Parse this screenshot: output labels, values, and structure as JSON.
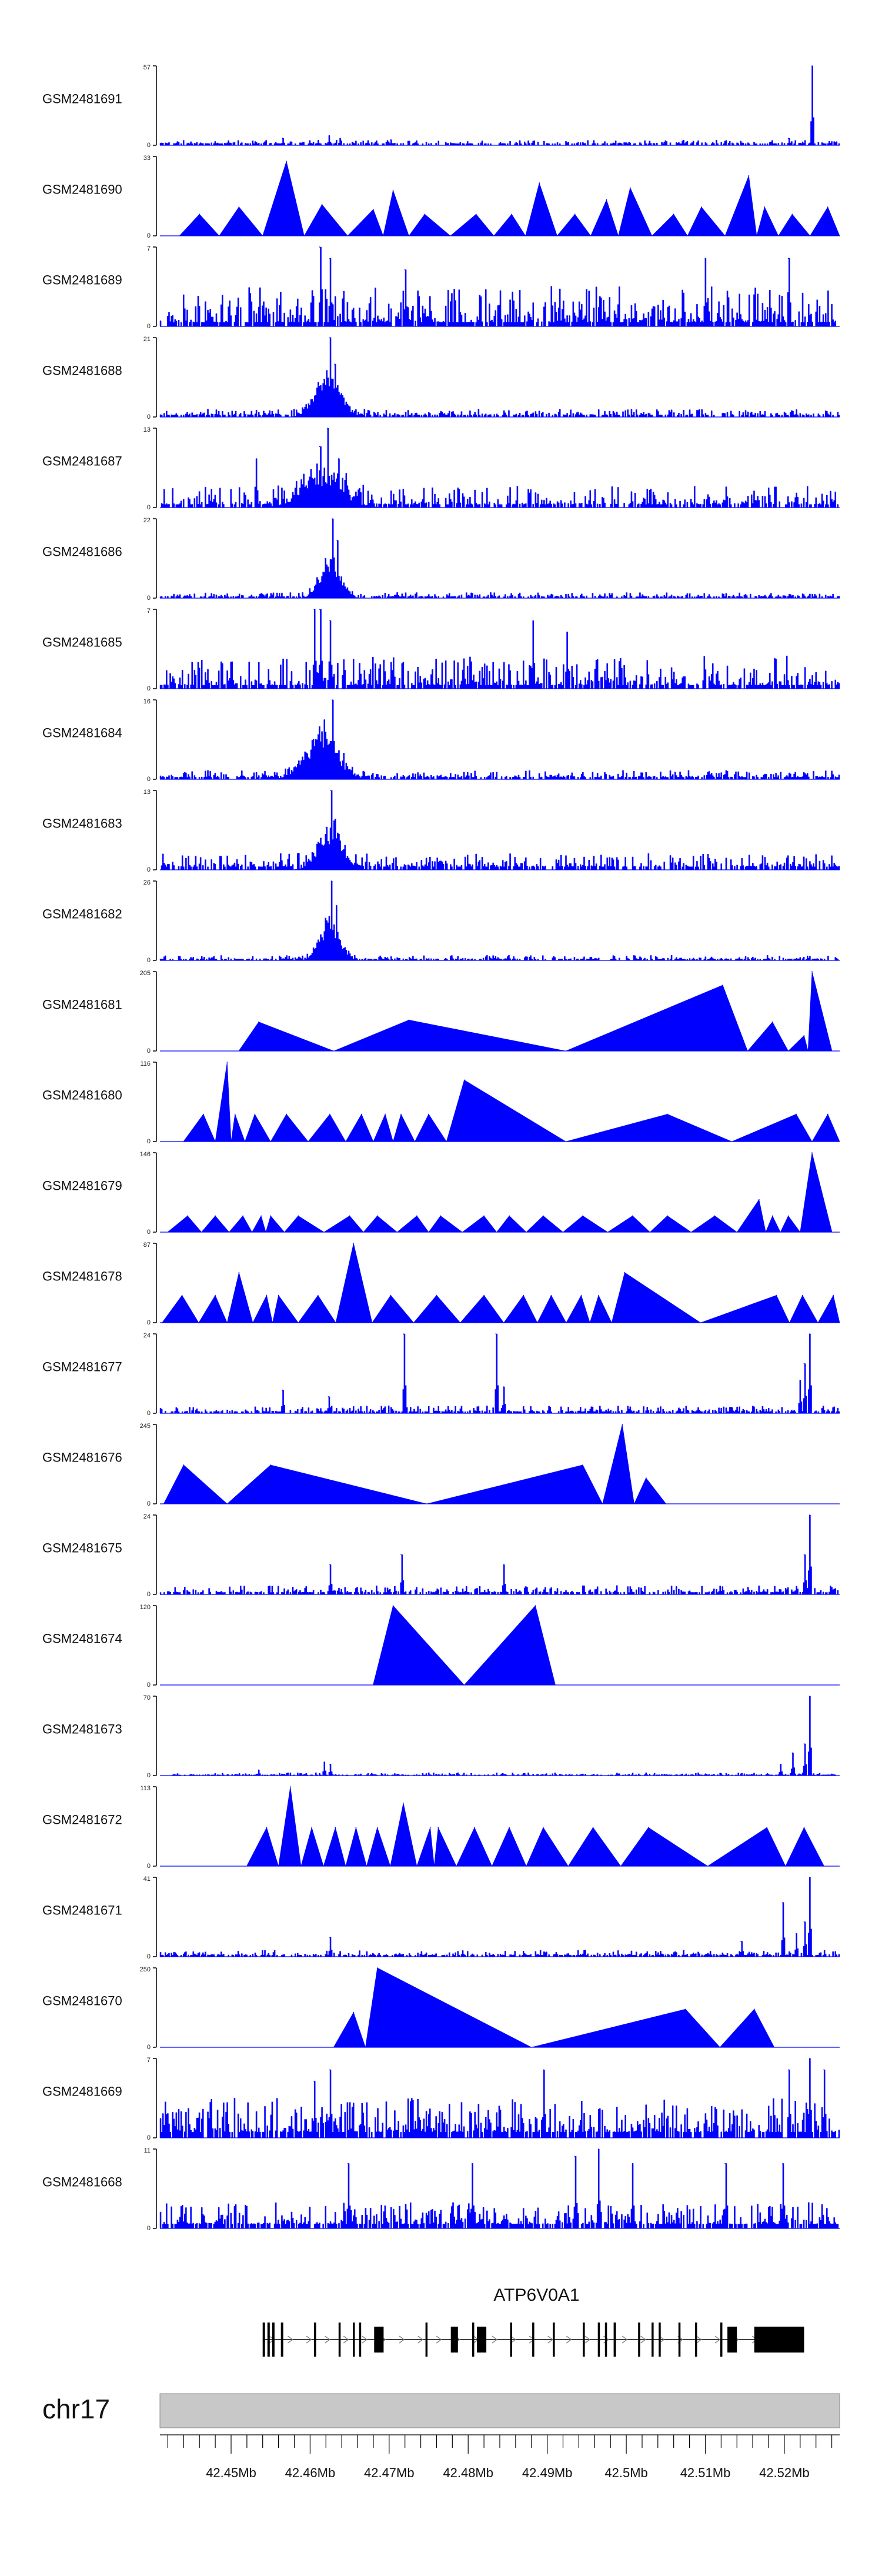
{
  "chart_data": {
    "type": "area",
    "title": "",
    "chromosome": "chr17",
    "region_mb": [
      42.441,
      42.527
    ],
    "fill_color": "#0000ff",
    "ideogram_color": "#c8c8c8",
    "x_ticks": [
      {
        "value": 42.45,
        "label": "42.45Mb"
      },
      {
        "value": 42.46,
        "label": "42.46Mb"
      },
      {
        "value": 42.47,
        "label": "42.47Mb"
      },
      {
        "value": 42.48,
        "label": "42.48Mb"
      },
      {
        "value": 42.49,
        "label": "42.49Mb"
      },
      {
        "value": 42.5,
        "label": "42.5Mb"
      },
      {
        "value": 42.51,
        "label": "42.51Mb"
      },
      {
        "value": 42.52,
        "label": "42.52Mb"
      }
    ],
    "gene": {
      "name": "ATP6V0A1",
      "start_mb": 42.454,
      "end_mb": 42.5225,
      "strand": "+",
      "exons": [
        [
          42.454,
          42.4543
        ],
        [
          42.4546,
          42.4549
        ],
        [
          42.4552,
          42.4555
        ],
        [
          42.4563,
          42.4566
        ],
        [
          42.4605,
          42.4607
        ],
        [
          42.4636,
          42.4638
        ],
        [
          42.4654,
          42.4656
        ],
        [
          42.4662,
          42.4664
        ],
        [
          42.4681,
          42.4693
        ],
        [
          42.4746,
          42.4748
        ],
        [
          42.4778,
          42.4787
        ],
        [
          42.4805,
          42.4807
        ],
        [
          42.4811,
          42.4823
        ],
        [
          42.4853,
          42.4855
        ],
        [
          42.4881,
          42.4883
        ],
        [
          42.4907,
          42.4909
        ],
        [
          42.4945,
          42.4947
        ],
        [
          42.4964,
          42.4966
        ],
        [
          42.4973,
          42.4975
        ],
        [
          42.4984,
          42.4987
        ],
        [
          42.5015,
          42.5017
        ],
        [
          42.5032,
          42.5034
        ],
        [
          42.5041,
          42.5043
        ],
        [
          42.5066,
          42.5068
        ],
        [
          42.5087,
          42.5089
        ],
        [
          42.5119,
          42.5121
        ],
        [
          42.5128,
          42.514
        ],
        [
          42.5162,
          42.5225
        ]
      ]
    },
    "series": [
      {
        "name": "GSM2481691",
        "ymax": 57,
        "style": "signal",
        "baseline": 1.2,
        "noise": 2.5,
        "sparsity": 0.35,
        "seed": 11,
        "peaks": [
          [
            42.4624,
            7
          ],
          [
            42.4638,
            5
          ],
          [
            42.5235,
            57
          ],
          [
            42.5205,
            5
          ],
          [
            42.4565,
            5
          ],
          [
            42.4702,
            4
          ]
        ]
      },
      {
        "name": "GSM2481690",
        "ymax": 33,
        "style": "triangles",
        "seed": 12,
        "peaks": [
          [
            42.446,
            9
          ],
          [
            42.451,
            12
          ],
          [
            42.457,
            31
          ],
          [
            42.4615,
            13
          ],
          [
            42.468,
            11
          ],
          [
            42.4705,
            19
          ],
          [
            42.4745,
            9
          ],
          [
            42.481,
            9
          ],
          [
            42.4855,
            9
          ],
          [
            42.489,
            22
          ],
          [
            42.4935,
            9
          ],
          [
            42.4975,
            15
          ],
          [
            42.5005,
            20
          ],
          [
            42.506,
            9
          ],
          [
            42.5095,
            12
          ],
          [
            42.5155,
            25
          ],
          [
            42.5175,
            12
          ],
          [
            42.521,
            9
          ],
          [
            42.5255,
            12
          ]
        ]
      },
      {
        "name": "GSM2481689",
        "ymax": 7,
        "style": "signal",
        "baseline": 0.35,
        "noise": 3.2,
        "sparsity": 0.15,
        "seed": 13,
        "peaks": [
          [
            42.4612,
            7
          ],
          [
            42.4625,
            6
          ],
          [
            42.472,
            5
          ],
          [
            42.51,
            6
          ],
          [
            42.5205,
            6
          ]
        ]
      },
      {
        "name": "GSM2481688",
        "ymax": 21,
        "style": "signal",
        "baseline": 0.5,
        "noise": 1.6,
        "sparsity": 0.3,
        "seed": 14,
        "cluster": [
          42.4622,
          0.0015,
          12
        ],
        "peaks": [
          [
            42.4625,
            21
          ],
          [
            42.4631,
            14
          ],
          [
            42.4617,
            10
          ]
        ]
      },
      {
        "name": "GSM2481687",
        "ymax": 13,
        "style": "signal",
        "baseline": 0.5,
        "noise": 3.0,
        "sparsity": 0.3,
        "seed": 15,
        "cluster": [
          42.4615,
          0.0025,
          6
        ],
        "peaks": [
          [
            42.4622,
            13
          ],
          [
            42.4612,
            10
          ],
          [
            42.4636,
            8
          ],
          [
            42.4532,
            8
          ]
        ]
      },
      {
        "name": "GSM2481686",
        "ymax": 22,
        "style": "signal",
        "baseline": 0.4,
        "noise": 1.2,
        "sparsity": 0.35,
        "seed": 16,
        "cluster": [
          42.4625,
          0.0012,
          12
        ],
        "peaks": [
          [
            42.4628,
            22
          ],
          [
            42.4634,
            16
          ],
          [
            42.4619,
            11
          ]
        ]
      },
      {
        "name": "GSM2481685",
        "ymax": 7,
        "style": "signal",
        "baseline": 0.3,
        "noise": 2.6,
        "sparsity": 0.2,
        "seed": 17,
        "peaks": [
          [
            42.4605,
            7
          ],
          [
            42.4612,
            7
          ],
          [
            42.4625,
            6
          ],
          [
            42.4882,
            6
          ],
          [
            42.4925,
            5
          ]
        ]
      },
      {
        "name": "GSM2481684",
        "ymax": 16,
        "style": "signal",
        "baseline": 0.4,
        "noise": 1.4,
        "sparsity": 0.3,
        "seed": 18,
        "cluster": [
          42.4615,
          0.002,
          10
        ],
        "peaks": [
          [
            42.4628,
            16
          ],
          [
            42.4618,
            12
          ],
          [
            42.461,
            9
          ]
        ]
      },
      {
        "name": "GSM2481683",
        "ymax": 13,
        "style": "signal",
        "baseline": 0.5,
        "noise": 2.2,
        "sparsity": 0.3,
        "seed": 19,
        "cluster": [
          42.4625,
          0.0015,
          7
        ],
        "peaks": [
          [
            42.4626,
            13
          ],
          [
            42.4631,
            8
          ],
          [
            42.462,
            7
          ]
        ]
      },
      {
        "name": "GSM2481682",
        "ymax": 26,
        "style": "signal",
        "baseline": 0.4,
        "noise": 1.3,
        "sparsity": 0.35,
        "seed": 20,
        "cluster": [
          42.4625,
          0.0012,
          14
        ],
        "peaks": [
          [
            42.4627,
            26
          ],
          [
            42.4633,
            18
          ],
          [
            42.4621,
            13
          ]
        ]
      },
      {
        "name": "GSM2481681",
        "ymax": 205,
        "style": "triangles",
        "seed": 21,
        "peaks": [
          [
            42.4535,
            75
          ],
          [
            42.4725,
            80
          ],
          [
            42.5122,
            170
          ],
          [
            42.5185,
            75
          ],
          [
            42.5235,
            205
          ],
          [
            42.5225,
            40
          ]
        ]
      },
      {
        "name": "GSM2481680",
        "ymax": 116,
        "style": "triangles",
        "seed": 22,
        "peaks": [
          [
            42.4465,
            40
          ],
          [
            42.4495,
            116
          ],
          [
            42.4505,
            40
          ],
          [
            42.453,
            40
          ],
          [
            42.457,
            40
          ],
          [
            42.4625,
            40
          ],
          [
            42.4665,
            40
          ],
          [
            42.4695,
            40
          ],
          [
            42.4715,
            40
          ],
          [
            42.475,
            40
          ],
          [
            42.4795,
            90
          ],
          [
            42.5052,
            40
          ],
          [
            42.5215,
            40
          ],
          [
            42.5255,
            40
          ]
        ]
      },
      {
        "name": "GSM2481679",
        "ymax": 146,
        "style": "triangles",
        "seed": 23,
        "peaks": [
          [
            42.4445,
            30
          ],
          [
            42.448,
            30
          ],
          [
            42.4515,
            30
          ],
          [
            42.4538,
            30
          ],
          [
            42.455,
            30
          ],
          [
            42.4585,
            30
          ],
          [
            42.465,
            30
          ],
          [
            42.4685,
            30
          ],
          [
            42.4735,
            30
          ],
          [
            42.4765,
            30
          ],
          [
            42.482,
            30
          ],
          [
            42.4852,
            30
          ],
          [
            42.4895,
            30
          ],
          [
            42.4945,
            30
          ],
          [
            42.5008,
            30
          ],
          [
            42.5052,
            30
          ],
          [
            42.5112,
            30
          ],
          [
            42.5168,
            60
          ],
          [
            42.5185,
            30
          ],
          [
            42.5205,
            30
          ],
          [
            42.5235,
            146
          ]
        ]
      },
      {
        "name": "GSM2481678",
        "ymax": 87,
        "style": "triangles",
        "seed": 24,
        "peaks": [
          [
            42.4438,
            30
          ],
          [
            42.448,
            30
          ],
          [
            42.451,
            55
          ],
          [
            42.4545,
            30
          ],
          [
            42.456,
            30
          ],
          [
            42.461,
            30
          ],
          [
            42.4655,
            87
          ],
          [
            42.4702,
            30
          ],
          [
            42.476,
            30
          ],
          [
            42.482,
            30
          ],
          [
            42.487,
            30
          ],
          [
            42.4905,
            30
          ],
          [
            42.4943,
            30
          ],
          [
            42.4965,
            30
          ],
          [
            42.4998,
            55
          ],
          [
            42.519,
            30
          ],
          [
            42.5223,
            30
          ],
          [
            42.5262,
            30
          ]
        ]
      },
      {
        "name": "GSM2481677",
        "ymax": 24,
        "style": "signal",
        "baseline": 0.5,
        "noise": 1.8,
        "sparsity": 0.35,
        "seed": 25,
        "peaks": [
          [
            42.4565,
            7
          ],
          [
            42.4623,
            5
          ],
          [
            42.4718,
            24
          ],
          [
            42.4835,
            24
          ],
          [
            42.4845,
            8
          ],
          [
            42.5232,
            24
          ],
          [
            42.5225,
            15
          ],
          [
            42.522,
            10
          ]
        ]
      },
      {
        "name": "GSM2481676",
        "ymax": 245,
        "style": "triangles",
        "seed": 26,
        "peaks": [
          [
            42.444,
            120
          ],
          [
            42.455,
            120
          ],
          [
            42.4945,
            120
          ],
          [
            42.4995,
            245
          ],
          [
            42.5025,
            80
          ]
        ]
      },
      {
        "name": "GSM2481675",
        "ymax": 24,
        "style": "signal",
        "baseline": 0.6,
        "noise": 2.2,
        "sparsity": 0.3,
        "seed": 27,
        "peaks": [
          [
            42.4625,
            9
          ],
          [
            42.4715,
            12
          ],
          [
            42.4845,
            9
          ],
          [
            42.5232,
            24
          ],
          [
            42.5225,
            12
          ]
        ]
      },
      {
        "name": "GSM2481674",
        "ymax": 120,
        "style": "triangles",
        "seed": 28,
        "peaks": [
          [
            42.4705,
            120
          ],
          [
            42.4885,
            120
          ]
        ]
      },
      {
        "name": "GSM2481673",
        "ymax": 70,
        "style": "signal",
        "baseline": 0.6,
        "noise": 2.0,
        "sparsity": 0.4,
        "seed": 29,
        "peaks": [
          [
            42.4618,
            12
          ],
          [
            42.4625,
            10
          ],
          [
            42.4535,
            5
          ],
          [
            42.5195,
            10
          ],
          [
            42.5232,
            70
          ],
          [
            42.5225,
            28
          ],
          [
            42.521,
            20
          ]
        ]
      },
      {
        "name": "GSM2481672",
        "ymax": 113,
        "style": "triangles",
        "seed": 30,
        "peaks": [
          [
            42.4575,
            113
          ],
          [
            42.4545,
            55
          ],
          [
            42.4602,
            55
          ],
          [
            42.4632,
            55
          ],
          [
            42.4658,
            55
          ],
          [
            42.4685,
            55
          ],
          [
            42.4718,
            90
          ],
          [
            42.4752,
            55
          ],
          [
            42.4762,
            55
          ],
          [
            42.4808,
            55
          ],
          [
            42.4852,
            55
          ],
          [
            42.4895,
            55
          ],
          [
            42.4958,
            55
          ],
          [
            42.5028,
            55
          ],
          [
            42.5178,
            55
          ],
          [
            42.5225,
            55
          ]
        ]
      },
      {
        "name": "GSM2481671",
        "ymax": 41,
        "style": "signal",
        "baseline": 0.8,
        "noise": 2.6,
        "sparsity": 0.35,
        "seed": 31,
        "peaks": [
          [
            42.4625,
            10
          ],
          [
            42.5145,
            8
          ],
          [
            42.5198,
            28
          ],
          [
            42.5232,
            41
          ],
          [
            42.5225,
            18
          ],
          [
            42.5215,
            12
          ]
        ]
      },
      {
        "name": "GSM2481670",
        "ymax": 250,
        "style": "triangles",
        "seed": 32,
        "peaks": [
          [
            42.4685,
            250
          ],
          [
            42.4655,
            110
          ],
          [
            42.5075,
            120
          ],
          [
            42.5162,
            120
          ]
        ]
      },
      {
        "name": "GSM2481669",
        "ymax": 7,
        "style": "signal",
        "baseline": 0.5,
        "noise": 3.0,
        "sparsity": 0.2,
        "seed": 33,
        "peaks": [
          [
            42.4605,
            5
          ],
          [
            42.4625,
            6
          ],
          [
            42.4895,
            6
          ],
          [
            42.5232,
            7
          ],
          [
            42.5205,
            6
          ],
          [
            42.525,
            6
          ]
        ]
      },
      {
        "name": "GSM2481668",
        "ymax": 11,
        "style": "signal",
        "baseline": 0.6,
        "noise": 3.0,
        "sparsity": 0.2,
        "seed": 34,
        "peaks": [
          [
            42.4648,
            9
          ],
          [
            42.4805,
            9
          ],
          [
            42.4935,
            10
          ],
          [
            42.4965,
            11
          ],
          [
            42.5008,
            9
          ],
          [
            42.5125,
            9
          ],
          [
            42.5198,
            9
          ]
        ]
      }
    ]
  }
}
